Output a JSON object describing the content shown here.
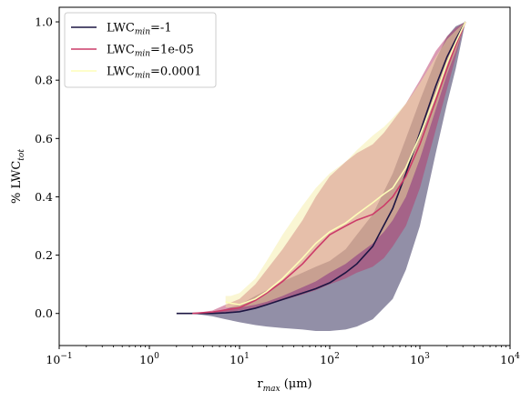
{
  "chart_data": {
    "type": "line",
    "xscale": "log",
    "xlim": [
      0.1,
      10000
    ],
    "ylim": [
      -0.11,
      1.05
    ],
    "xticks": [
      {
        "value": 0.1,
        "base": "10",
        "exp": "−1"
      },
      {
        "value": 1,
        "base": "10",
        "exp": "0"
      },
      {
        "value": 10,
        "base": "10",
        "exp": "1"
      },
      {
        "value": 100,
        "base": "10",
        "exp": "2"
      },
      {
        "value": 1000,
        "base": "10",
        "exp": "3"
      },
      {
        "value": 10000,
        "base": "10",
        "exp": "4"
      }
    ],
    "yticks": [
      {
        "value": 0.0,
        "label": "0.0"
      },
      {
        "value": 0.2,
        "label": "0.2"
      },
      {
        "value": 0.4,
        "label": "0.4"
      },
      {
        "value": 0.6,
        "label": "0.6"
      },
      {
        "value": 0.8,
        "label": "0.8"
      },
      {
        "value": 1.0,
        "label": "1.0"
      }
    ],
    "xlabel": {
      "main": "r",
      "sub": "max",
      "rest": " (μm)"
    },
    "ylabel": {
      "main": "% LWC",
      "sub": "tot"
    },
    "legend_position": "upper-left",
    "grid": false,
    "series": [
      {
        "legend": {
          "main": "LWC",
          "sub": "min",
          "rest": "=-1"
        },
        "color": "#1c1542",
        "band_color": "#26204f",
        "x": [
          2,
          3,
          5,
          7,
          10,
          15,
          20,
          30,
          50,
          70,
          100,
          150,
          200,
          300,
          500,
          700,
          1000,
          1500,
          2000,
          2500,
          3200
        ],
        "y": [
          0.0,
          0.0,
          0.0,
          0.002,
          0.006,
          0.018,
          0.03,
          0.048,
          0.07,
          0.085,
          0.105,
          0.14,
          0.17,
          0.23,
          0.36,
          0.48,
          0.62,
          0.78,
          0.88,
          0.94,
          1.0
        ],
        "lower": [
          0.0,
          0.0,
          -0.01,
          -0.02,
          -0.03,
          -0.04,
          -0.045,
          -0.05,
          -0.055,
          -0.06,
          -0.06,
          -0.055,
          -0.045,
          -0.02,
          0.05,
          0.15,
          0.3,
          0.55,
          0.72,
          0.84,
          1.0
        ],
        "upper": [
          0.0,
          0.0,
          0.005,
          0.015,
          0.03,
          0.06,
          0.08,
          0.11,
          0.14,
          0.16,
          0.18,
          0.22,
          0.27,
          0.34,
          0.48,
          0.6,
          0.73,
          0.87,
          0.95,
          0.985,
          1.0
        ]
      },
      {
        "legend": {
          "main": "LWC",
          "sub": "min",
          "rest": "=1e-05"
        },
        "color": "#cc3b69",
        "band_color": "#b7386a",
        "x": [
          3,
          5,
          7,
          10,
          15,
          20,
          30,
          50,
          70,
          100,
          150,
          200,
          300,
          400,
          500,
          700,
          1000,
          1500,
          2000,
          2500,
          3200
        ],
        "y": [
          0.0,
          0.005,
          0.012,
          0.02,
          0.045,
          0.07,
          0.11,
          0.17,
          0.22,
          0.27,
          0.3,
          0.32,
          0.34,
          0.37,
          0.4,
          0.47,
          0.58,
          0.73,
          0.84,
          0.92,
          1.0
        ],
        "lower": [
          0.0,
          0.0,
          0.002,
          0.01,
          0.02,
          0.03,
          0.045,
          0.065,
          0.08,
          0.1,
          0.12,
          0.14,
          0.16,
          0.19,
          0.23,
          0.3,
          0.43,
          0.63,
          0.77,
          0.88,
          1.0
        ],
        "upper": [
          0.0,
          0.01,
          0.03,
          0.05,
          0.1,
          0.15,
          0.22,
          0.32,
          0.4,
          0.47,
          0.52,
          0.55,
          0.58,
          0.62,
          0.66,
          0.72,
          0.8,
          0.9,
          0.95,
          0.98,
          1.0
        ]
      },
      {
        "legend": {
          "main": "LWC",
          "sub": "min",
          "rest": "=0.0001"
        },
        "color": "#fdfdb8",
        "band_color": "#f3ec9e",
        "x": [
          7,
          8,
          10,
          15,
          20,
          30,
          50,
          70,
          100,
          150,
          200,
          300,
          400,
          500,
          700,
          1000,
          1500,
          2000,
          2500,
          3200
        ],
        "y": [
          0.04,
          0.035,
          0.03,
          0.05,
          0.075,
          0.12,
          0.19,
          0.24,
          0.28,
          0.31,
          0.34,
          0.38,
          0.41,
          0.43,
          0.5,
          0.61,
          0.75,
          0.86,
          0.93,
          1.0
        ],
        "lower": [
          0.02,
          0.02,
          0.02,
          0.03,
          0.04,
          0.06,
          0.09,
          0.11,
          0.14,
          0.17,
          0.2,
          0.24,
          0.28,
          0.32,
          0.4,
          0.53,
          0.7,
          0.82,
          0.9,
          1.0
        ],
        "upper": [
          0.06,
          0.06,
          0.07,
          0.12,
          0.18,
          0.27,
          0.37,
          0.43,
          0.48,
          0.52,
          0.56,
          0.61,
          0.64,
          0.67,
          0.72,
          0.79,
          0.88,
          0.94,
          0.97,
          1.0
        ]
      }
    ]
  }
}
